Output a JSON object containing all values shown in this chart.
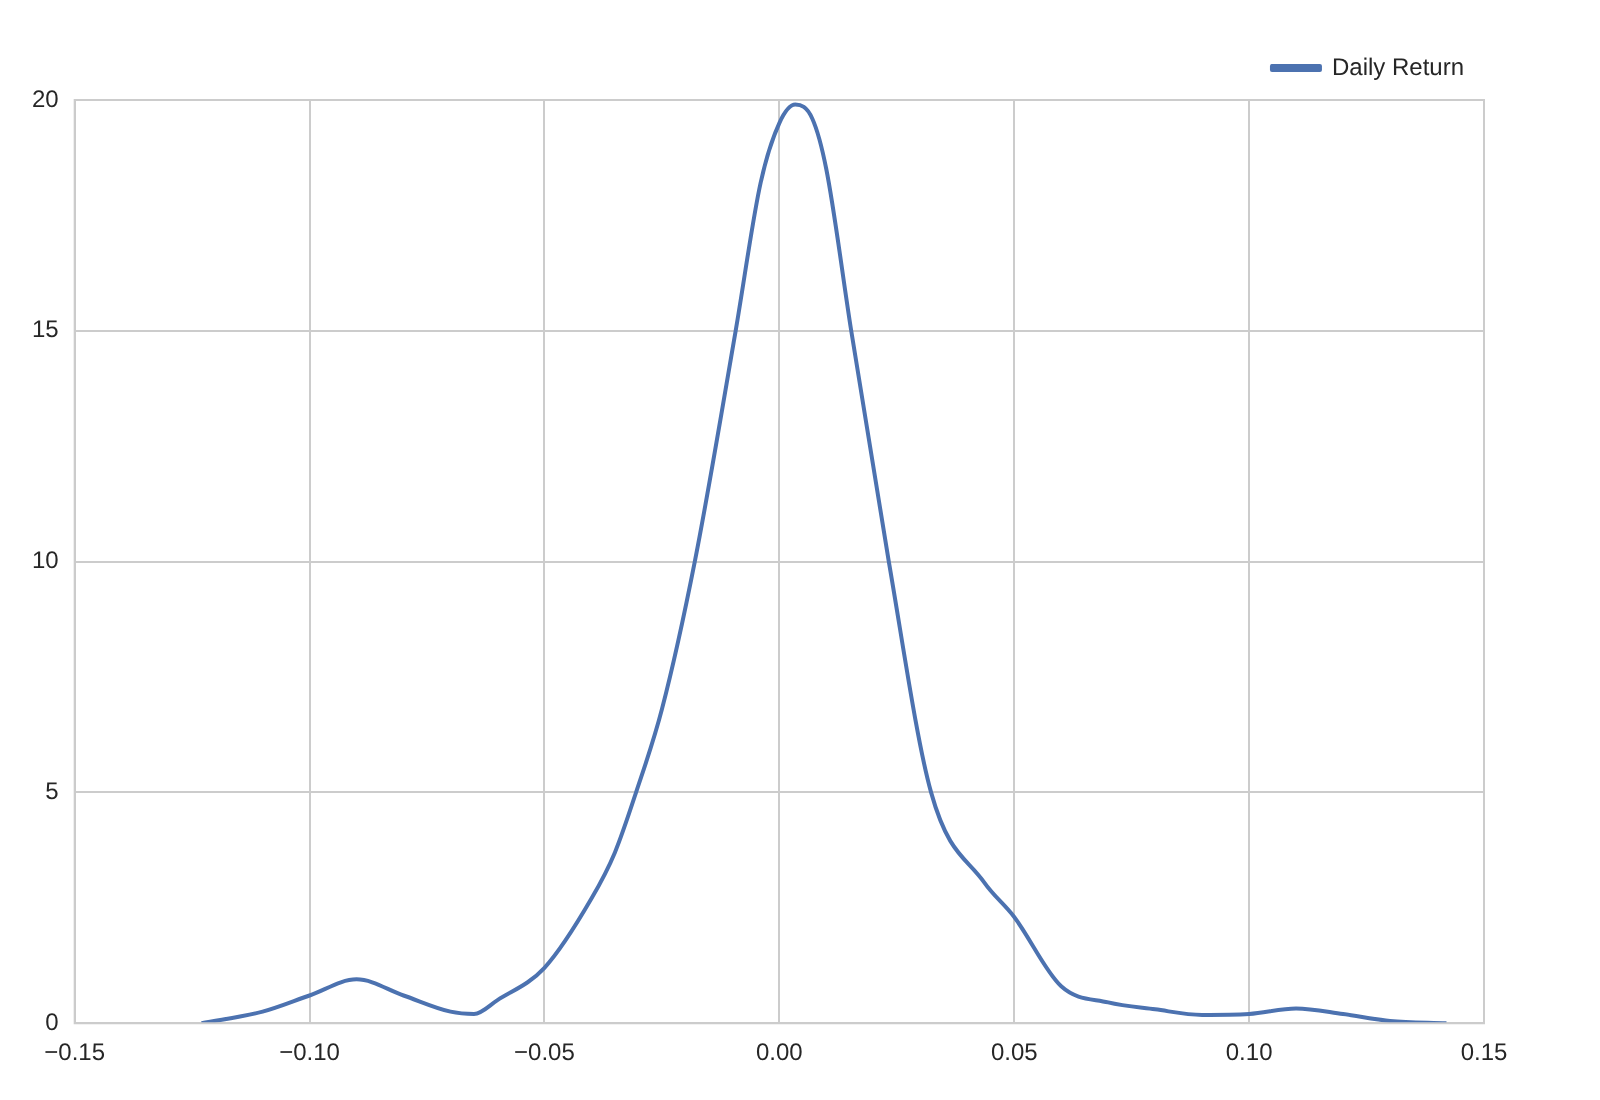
{
  "chart_data": {
    "type": "line",
    "x": [
      -0.123,
      -0.11,
      -0.1,
      -0.09,
      -0.08,
      -0.07,
      -0.065,
      -0.06,
      -0.05,
      -0.04,
      -0.035,
      -0.0305,
      -0.025,
      -0.018,
      -0.0093,
      -0.004,
      0.0,
      0.0034,
      0.007,
      0.01,
      0.0153,
      0.0233,
      0.0323,
      0.0436,
      0.05,
      0.06,
      0.07,
      0.08,
      0.09,
      0.1,
      0.11,
      0.12,
      0.13,
      0.142
    ],
    "series": [
      {
        "name": "Daily Return",
        "color": "#4c72b0",
        "values": [
          0.0,
          0.25,
          0.6,
          0.95,
          0.6,
          0.25,
          0.2,
          0.5,
          1.2,
          2.7,
          3.7,
          5,
          6.8,
          10,
          15,
          18.2,
          19.5,
          19.9,
          19.6,
          18.5,
          15,
          10,
          5,
          3.05,
          2.3,
          0.8,
          0.45,
          0.3,
          0.18,
          0.2,
          0.32,
          0.2,
          0.05,
          0.0
        ]
      }
    ],
    "xlim": [
      -0.15,
      0.15
    ],
    "xticks": [
      {
        "value": -0.15,
        "label": "−0.15"
      },
      {
        "value": -0.1,
        "label": "−0.10"
      },
      {
        "value": -0.05,
        "label": "−0.05"
      },
      {
        "value": 0,
        "label": "0.00"
      },
      {
        "value": 0.05,
        "label": "0.05"
      },
      {
        "value": 0.1,
        "label": "0.10"
      },
      {
        "value": 0.15,
        "label": "0.15"
      }
    ],
    "ylim": [
      0,
      20
    ],
    "yticks": [
      0,
      5,
      10,
      15,
      20
    ],
    "grid": true,
    "legend": "top right",
    "marker": "none",
    "line_style": "solid"
  }
}
